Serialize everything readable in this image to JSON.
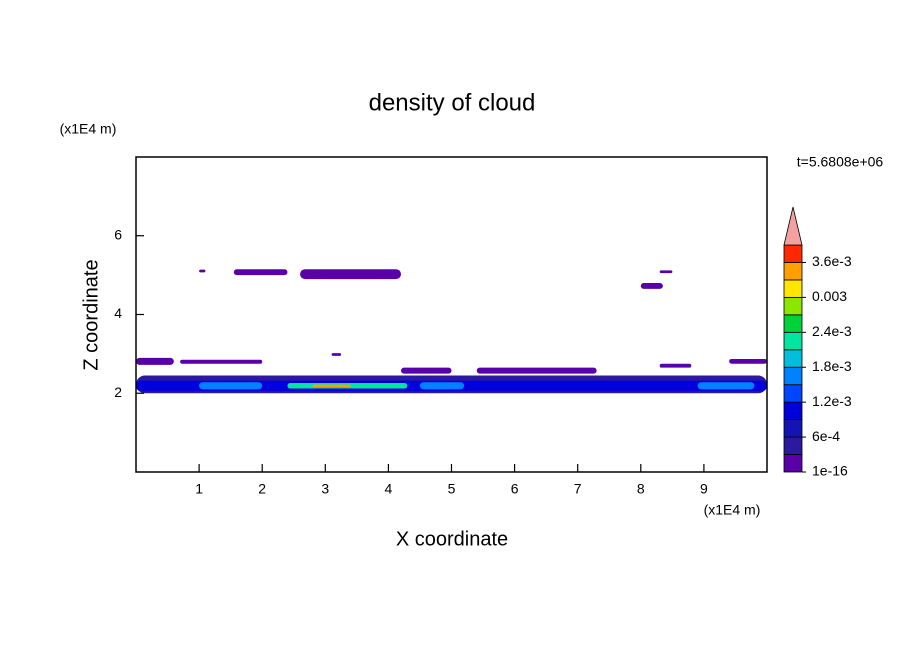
{
  "chart_data": {
    "type": "contour",
    "title": "density of cloud",
    "x_label": "X coordinate",
    "y_label": "Z coordinate",
    "x_unit": "(x1E4 m)",
    "y_unit": "(x1E4 m)",
    "annotation": "t=5.6808e+06",
    "xlim": [
      0,
      10
    ],
    "ylim": [
      0,
      8
    ],
    "xticks": [
      1,
      2,
      3,
      4,
      5,
      6,
      7,
      8,
      9
    ],
    "yticks": [
      2,
      4,
      6
    ],
    "levels": [
      1e-16,
      0.0003,
      0.0006,
      0.0009,
      0.0012,
      0.0015,
      0.0018,
      0.0021,
      0.0024,
      0.0027,
      0.003,
      0.0033,
      0.0036
    ],
    "level_colors": [
      "#5a00a8",
      "#2d18a0",
      "#1414b4",
      "#0000dc",
      "#0046ff",
      "#0082ff",
      "#00bedc",
      "#00e6a0",
      "#00d23c",
      "#8ce600",
      "#ffe600",
      "#ffa000",
      "#ff2800"
    ],
    "over_color": "#f5a0a0",
    "clim": [
      1e-16,
      0.0039
    ],
    "colorbar_ticks": [
      {
        "value": 1e-16,
        "label": "1e-16"
      },
      {
        "value": 0.0006,
        "label": "6e-4"
      },
      {
        "value": 0.0012,
        "label": "1.2e-3"
      },
      {
        "value": 0.0018,
        "label": "1.8e-3"
      },
      {
        "value": 0.0024,
        "label": "2.4e-3"
      },
      0.003,
      {
        "value": 0.0036,
        "label": "3.6e-3"
      }
    ],
    "patches": [
      {
        "x": [
          1.0,
          1.1
        ],
        "z": [
          5.07,
          5.14
        ],
        "value": 0.0001
      },
      {
        "x": [
          1.55,
          2.4
        ],
        "z": [
          5.0,
          5.15
        ],
        "value": 0.0001
      },
      {
        "x": [
          2.6,
          4.2
        ],
        "z": [
          4.9,
          5.15
        ],
        "value": 0.0001
      },
      {
        "x": [
          8.0,
          8.35
        ],
        "z": [
          4.65,
          4.8
        ],
        "value": 0.0001
      },
      {
        "x": [
          8.3,
          8.5
        ],
        "z": [
          5.05,
          5.12
        ],
        "value": 0.0001
      },
      {
        "x": [
          0.0,
          0.6
        ],
        "z": [
          2.72,
          2.9
        ],
        "value": 0.0001
      },
      {
        "x": [
          0.7,
          2.0
        ],
        "z": [
          2.75,
          2.85
        ],
        "value": 0.0001
      },
      {
        "x": [
          3.1,
          3.25
        ],
        "z": [
          2.95,
          3.02
        ],
        "value": 0.0001
      },
      {
        "x": [
          4.2,
          5.0
        ],
        "z": [
          2.5,
          2.65
        ],
        "value": 0.0001
      },
      {
        "x": [
          5.4,
          7.3
        ],
        "z": [
          2.5,
          2.65
        ],
        "value": 0.0001
      },
      {
        "x": [
          8.3,
          8.8
        ],
        "z": [
          2.65,
          2.75
        ],
        "value": 0.0001
      },
      {
        "x": [
          9.4,
          10.0
        ],
        "z": [
          2.75,
          2.87
        ],
        "value": 0.0001
      },
      {
        "x": [
          0.0,
          10.0
        ],
        "z": [
          2.0,
          2.45
        ],
        "value": 0.0004
      },
      {
        "x": [
          0.0,
          10.0
        ],
        "z": [
          2.05,
          2.32
        ],
        "value": 0.001
      },
      {
        "x": [
          1.0,
          2.0
        ],
        "z": [
          2.1,
          2.28
        ],
        "value": 0.0016
      },
      {
        "x": [
          4.5,
          5.2
        ],
        "z": [
          2.1,
          2.28
        ],
        "value": 0.0016
      },
      {
        "x": [
          8.9,
          9.8
        ],
        "z": [
          2.1,
          2.28
        ],
        "value": 0.0016
      },
      {
        "x": [
          2.4,
          4.3
        ],
        "z": [
          2.12,
          2.26
        ],
        "value": 0.0022
      },
      {
        "x": [
          2.8,
          3.4
        ],
        "z": [
          2.16,
          2.22
        ],
        "value": 0.0034
      }
    ]
  }
}
